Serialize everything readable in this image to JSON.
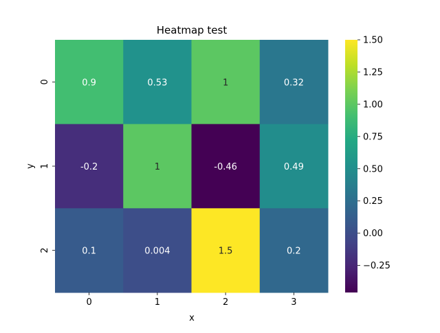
{
  "chart_data": {
    "type": "heatmap",
    "title": "Heatmap test",
    "xlabel": "x",
    "ylabel": "y",
    "x_categories": [
      "0",
      "1",
      "2",
      "3"
    ],
    "y_categories": [
      "0",
      "1",
      "2"
    ],
    "values": [
      [
        0.9,
        0.53,
        1,
        0.32
      ],
      [
        -0.2,
        1,
        -0.46,
        0.49
      ],
      [
        0.1,
        0.004,
        1.5,
        0.2
      ]
    ],
    "cell_labels": [
      [
        "0.9",
        "0.53",
        "1",
        "0.32"
      ],
      [
        "-0.2",
        "1",
        "-0.46",
        "0.49"
      ],
      [
        "0.1",
        "0.004",
        "1.5",
        "0.2"
      ]
    ],
    "colormap": "viridis",
    "vmin": -0.46,
    "vmax": 1.5,
    "colorbar_ticks": [
      "-0.25",
      "0.00",
      "0.25",
      "0.50",
      "0.75",
      "1.00",
      "1.25",
      "1.50"
    ],
    "colorbar_tick_values": [
      -0.25,
      0,
      0.25,
      0.5,
      0.75,
      1.0,
      1.25,
      1.5
    ]
  }
}
